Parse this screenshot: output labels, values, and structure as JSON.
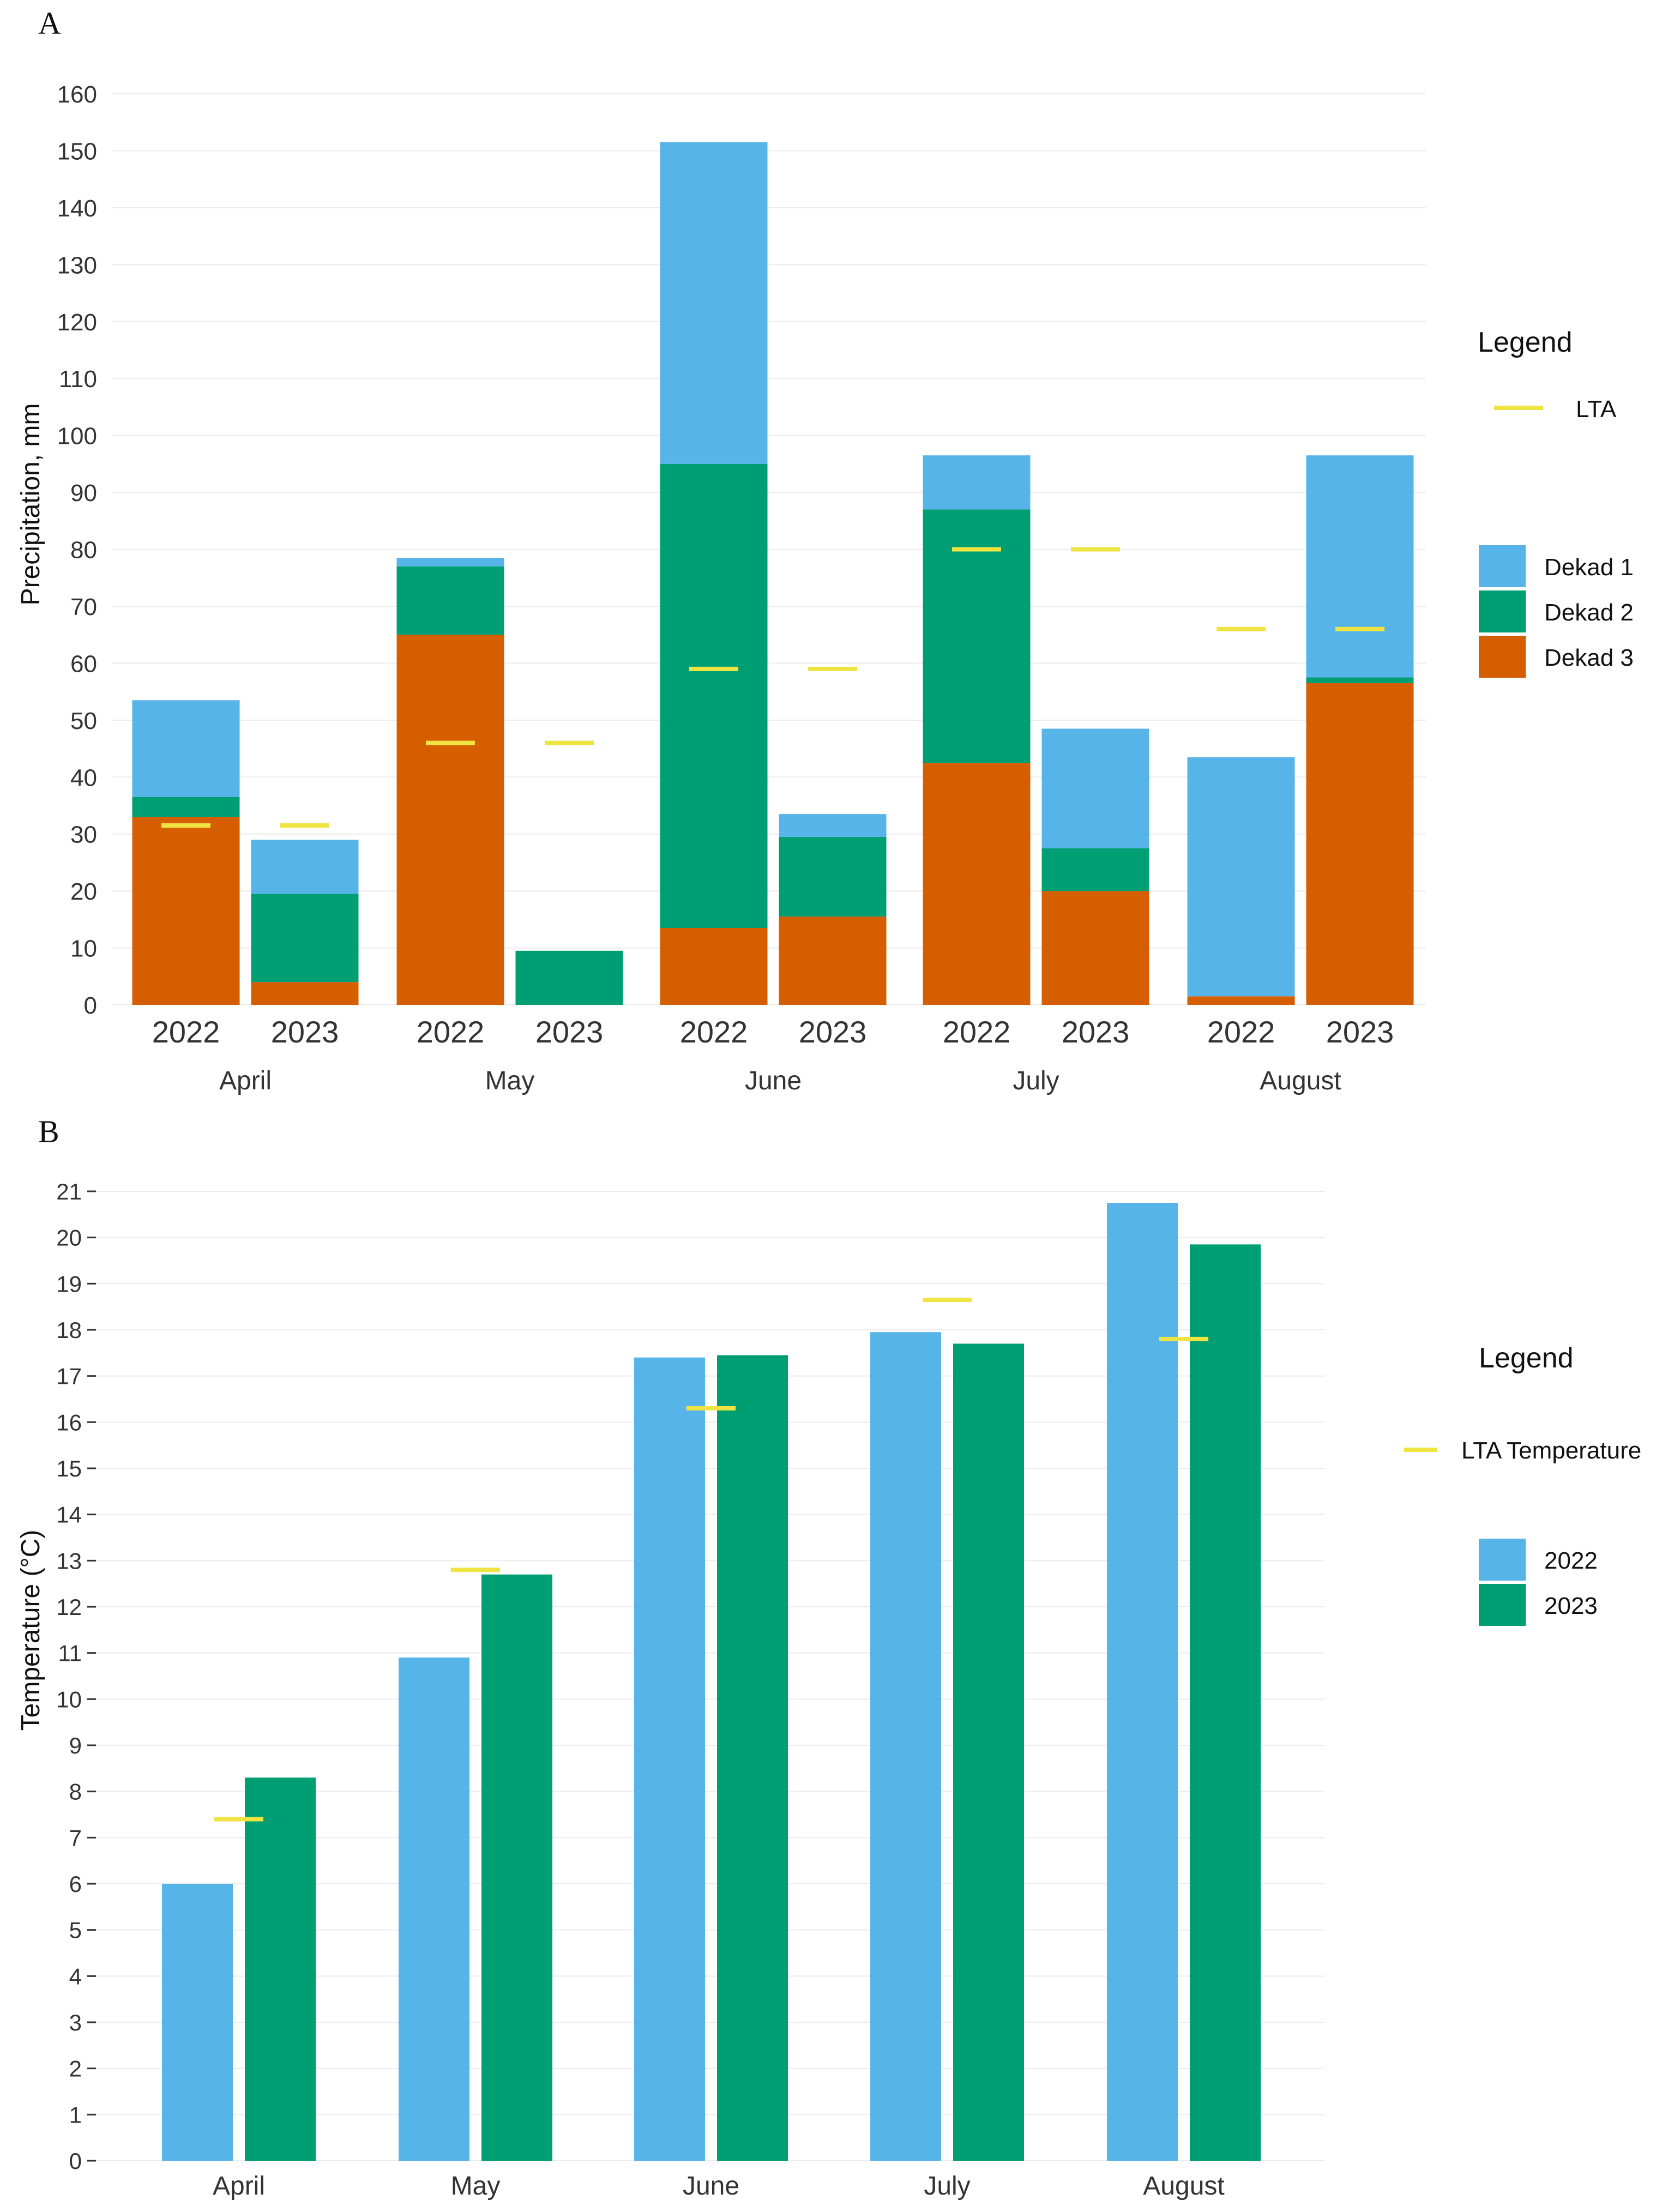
{
  "chart_data": [
    {
      "panel": "A",
      "type": "bar",
      "stacked": true,
      "ylabel": "Precipitation, mm",
      "ylim": [
        0,
        160
      ],
      "yticks": [
        0,
        10,
        20,
        30,
        40,
        50,
        60,
        70,
        80,
        90,
        100,
        110,
        120,
        130,
        140,
        150,
        160
      ],
      "months": [
        "April",
        "May",
        "June",
        "July",
        "August"
      ],
      "years": [
        "2022",
        "2023"
      ],
      "series": [
        {
          "name": "Dekad 3",
          "color": "#D55E00",
          "values": [
            [
              33,
              4
            ],
            [
              65,
              0
            ],
            [
              13.5,
              15.5
            ],
            [
              42.5,
              20
            ],
            [
              1.5,
              56.5
            ]
          ]
        },
        {
          "name": "Dekad 2",
          "color": "#009E73",
          "values": [
            [
              3.5,
              15.5
            ],
            [
              12,
              9.5
            ],
            [
              81.5,
              14
            ],
            [
              44.5,
              7.5
            ],
            [
              0,
              1
            ]
          ]
        },
        {
          "name": "Dekad 1",
          "color": "#56B4E9",
          "values": [
            [
              17,
              9.5
            ],
            [
              1.5,
              0
            ],
            [
              56.5,
              4
            ],
            [
              9.5,
              21
            ],
            [
              42,
              39
            ]
          ]
        }
      ],
      "lta": {
        "name": "LTA",
        "color": "#F0E442",
        "values": [
          31.5,
          46,
          59,
          80,
          66
        ]
      },
      "legend": {
        "title": "Legend",
        "position": "right"
      }
    },
    {
      "panel": "B",
      "type": "bar",
      "stacked": false,
      "ylabel": "Temperature (°C)",
      "ylim": [
        0,
        21
      ],
      "yticks": [
        0,
        1,
        2,
        3,
        4,
        5,
        6,
        7,
        8,
        9,
        10,
        11,
        12,
        13,
        14,
        15,
        16,
        17,
        18,
        19,
        20,
        21
      ],
      "categories": [
        "April",
        "May",
        "June",
        "July",
        "August"
      ],
      "series": [
        {
          "name": "2022",
          "color": "#56B4E9",
          "values": [
            6.0,
            10.9,
            17.4,
            17.95,
            20.75
          ]
        },
        {
          "name": "2023",
          "color": "#009E73",
          "values": [
            8.3,
            12.7,
            17.45,
            17.7,
            19.85
          ]
        }
      ],
      "lta": {
        "name": "LTA Temperature",
        "color": "#F0E442",
        "values": [
          7.4,
          12.8,
          16.3,
          18.65,
          17.8
        ]
      },
      "legend": {
        "title": "Legend",
        "position": "right"
      }
    }
  ]
}
